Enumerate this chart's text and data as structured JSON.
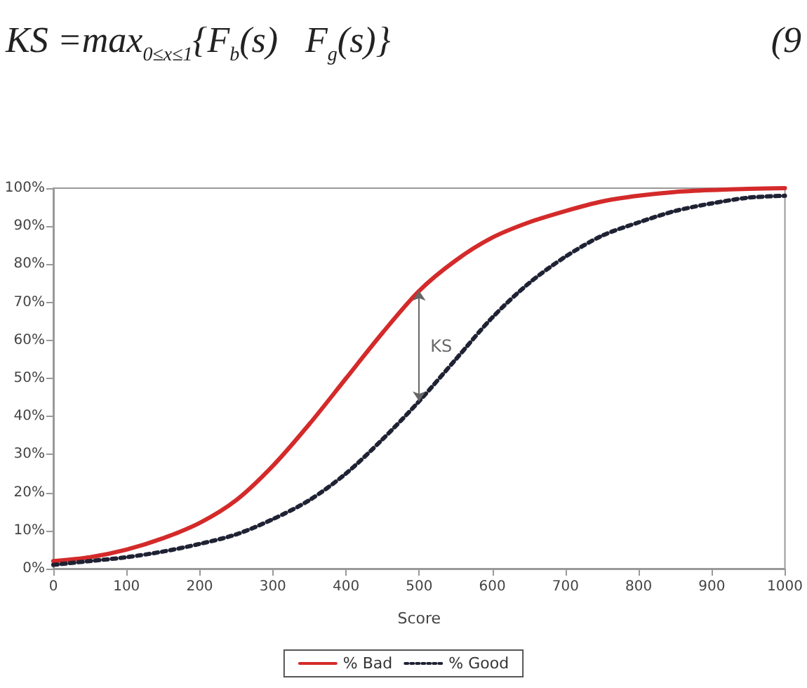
{
  "chart_data": {
    "type": "line",
    "title": "KS =max$_{0≤x≤1}${F$_{b}$(s)   F$_{g}$(s)}",
    "xlabel": "Score",
    "x": [
      0,
      50,
      100,
      150,
      200,
      250,
      300,
      350,
      400,
      450,
      500,
      550,
      600,
      650,
      700,
      750,
      800,
      850,
      900,
      950,
      1000
    ],
    "series": [
      {
        "name": "% Bad",
        "color": "#d42a2a",
        "line_style": "solid",
        "values": [
          2,
          3,
          5,
          8,
          12,
          18,
          27,
          38,
          50,
          62,
          73,
          81,
          87,
          91,
          94,
          96.5,
          98,
          99,
          99.5,
          99.8,
          100
        ]
      },
      {
        "name": "% Good",
        "color": "#1f2233",
        "line_style": "dotted",
        "values": [
          1,
          2,
          3,
          4.5,
          6.5,
          9,
          13,
          18,
          25,
          34,
          44,
          55,
          66,
          75,
          82,
          87.5,
          91,
          94,
          96,
          97.5,
          98
        ]
      }
    ],
    "xlim": [
      0,
      1000
    ],
    "xticks": [
      0,
      100,
      200,
      300,
      400,
      500,
      600,
      700,
      800,
      900,
      1000
    ],
    "ylim": [
      0,
      100
    ],
    "yticks": [
      {
        "value": 0,
        "label": "0%"
      },
      {
        "value": 10,
        "label": "10%"
      },
      {
        "value": 20,
        "label": "20%"
      },
      {
        "value": 30,
        "label": "30%"
      },
      {
        "value": 40,
        "label": "40%"
      },
      {
        "value": 50,
        "label": "50%"
      },
      {
        "value": 60,
        "label": "60%"
      },
      {
        "value": 70,
        "label": "70%"
      },
      {
        "value": 80,
        "label": "80%"
      },
      {
        "value": 90,
        "label": "90%"
      },
      {
        "value": 100,
        "label": "100%"
      }
    ],
    "annotations": [
      {
        "text": "KS",
        "x": 500,
        "y": 73
      },
      "(9"
    ],
    "grid": false,
    "legend": "bottom",
    "marker": "none"
  }
}
